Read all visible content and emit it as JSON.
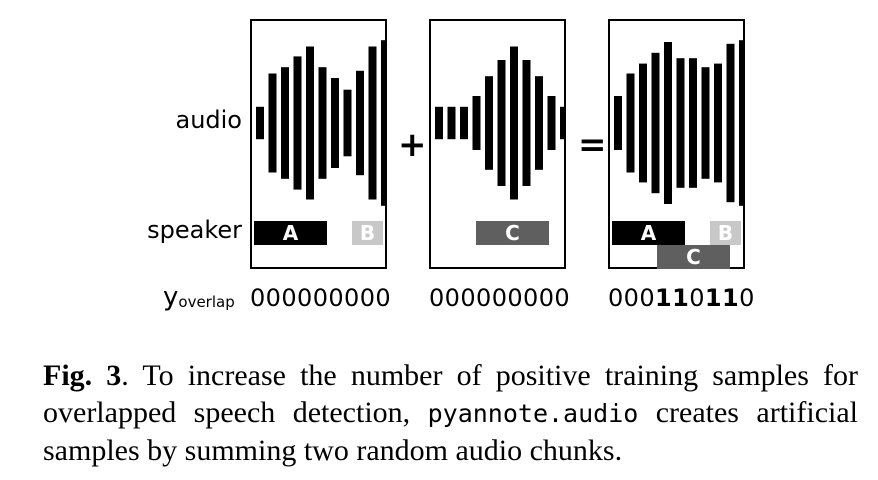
{
  "labels": {
    "audio": "audio",
    "speaker": "speaker",
    "y_main": "y",
    "y_sub": "overlap"
  },
  "operators": {
    "plus": "+",
    "equals": "="
  },
  "colors": {
    "speaker_a": "#000000",
    "speaker_b": "#c8c8c8",
    "speaker_c": "#5f5f5f",
    "wave": "#000000"
  },
  "panels": [
    {
      "id": "panel-1",
      "wave": [
        0.18,
        0.55,
        0.62,
        0.74,
        0.85,
        0.62,
        0.5,
        0.37,
        0.58,
        0.85,
        0.92
      ],
      "segments": [
        {
          "label": "A",
          "color": "#000000"
        },
        {
          "label": "B",
          "color": "#c8c8c8"
        }
      ],
      "labels_bits": "000000000"
    },
    {
      "id": "panel-2",
      "wave": [
        0.18,
        0.18,
        0.18,
        0.3,
        0.52,
        0.7,
        0.85,
        0.7,
        0.52,
        0.3,
        0.18
      ],
      "segments": [
        {
          "label": "C",
          "color": "#5f5f5f"
        }
      ],
      "labels_bits": "000000000"
    },
    {
      "id": "panel-3",
      "wave": [
        0.3,
        0.55,
        0.66,
        0.78,
        0.9,
        0.72,
        0.72,
        0.62,
        0.66,
        0.88,
        0.92
      ],
      "segments": [
        {
          "label": "A",
          "color": "#000000"
        },
        {
          "label": "B",
          "color": "#c8c8c8"
        },
        {
          "label": "C",
          "color": "#5f5f5f"
        }
      ],
      "labels_bits": "000110110"
    }
  ],
  "caption": {
    "fig": "Fig. 3",
    "text_before": ". To increase the number of positive training samples for overlapped speech detection, ",
    "code": "pyannote.audio",
    "text_after": " creates artificial samples by summing two random audio chunks."
  }
}
